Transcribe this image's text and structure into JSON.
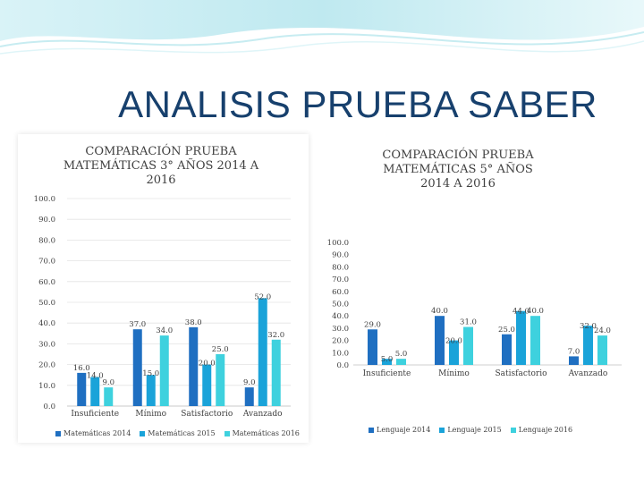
{
  "slide": {
    "title": "ANALISIS PRUEBA SABER"
  },
  "colors": {
    "s1": "#1f6fc1",
    "s2": "#1aa3d9",
    "s3": "#3ed1de",
    "grid": "#e4e4e4",
    "text": "#404040"
  },
  "chart_data": [
    {
      "type": "bar",
      "title": "COMPARACIÓN PRUEBA MATEMÁTICAS 3° AÑOS 2014 A 2016",
      "categories": [
        "Insuficiente",
        "Mínimo",
        "Satisfactorio",
        "Avanzado"
      ],
      "series": [
        {
          "name": "Matemáticas 2014",
          "values": [
            16.0,
            37.0,
            38.0,
            9.0
          ]
        },
        {
          "name": "Matemáticas 2015",
          "values": [
            14.0,
            15.0,
            20.0,
            52.0
          ]
        },
        {
          "name": "Matemáticas 2016",
          "values": [
            9.0,
            34.0,
            25.0,
            32.0
          ]
        }
      ],
      "yticks": [
        "0.0",
        "10.0",
        "20.0",
        "30.0",
        "40.0",
        "50.0",
        "60.0",
        "70.0",
        "80.0",
        "90.0",
        "100.0"
      ],
      "ylim": [
        0,
        100
      ],
      "legend": "bottom",
      "grid": true
    },
    {
      "type": "bar",
      "title": "COMPARACIÓN PRUEBA MATEMÁTICAS 5° AÑOS 2014 A 2016",
      "categories": [
        "Insuficiente",
        "Mínimo",
        "Satisfactorio",
        "Avanzado"
      ],
      "series": [
        {
          "name": "Lenguaje 2014",
          "values": [
            29.0,
            40.0,
            25.0,
            7.0
          ]
        },
        {
          "name": "Lenguaje 2015",
          "values": [
            5.0,
            20.0,
            44.0,
            32.0
          ]
        },
        {
          "name": "Lenguaje 2016",
          "values": [
            5.0,
            31.0,
            40.0,
            24.0
          ]
        }
      ],
      "yticks": [
        "0.0",
        "10.0",
        "20.0",
        "30.0",
        "40.0",
        "50.0",
        "60.0",
        "70.0",
        "80.0",
        "90.0",
        "100.0"
      ],
      "ylim": [
        0,
        100
      ],
      "legend": "bottom",
      "grid": false
    }
  ]
}
